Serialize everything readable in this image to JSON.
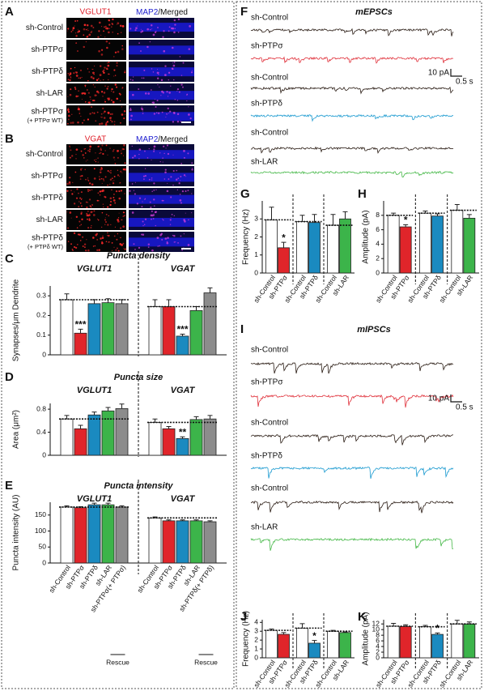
{
  "panels": [
    {
      "label": "A",
      "headers": [
        "VGLUT1",
        "MAP2",
        "/Merged"
      ],
      "rows": [
        "sh-Control",
        "sh-PTPσ",
        "sh-PTPδ",
        "sh-LAR",
        "sh-PTPσ"
      ],
      "rescue_note": "(+ PTPσ WT)"
    },
    {
      "label": "B",
      "headers": [
        "VGAT",
        "MAP2",
        "/Merged"
      ],
      "rows": [
        "sh-Control",
        "sh-PTPσ",
        "sh-PTPδ",
        "sh-LAR",
        "sh-PTPδ"
      ],
      "rescue_note": "(+ PTPδ WT)"
    }
  ],
  "traces": [
    {
      "label": "F",
      "title": "mEPSCs",
      "scale_y": "10 pA",
      "scale_x": "0.5 s",
      "rows": [
        {
          "name": "sh-Control",
          "color": "#2a1c14"
        },
        {
          "name": "sh-PTPσ",
          "color": "#e0303a"
        },
        {
          "name": "sh-Control",
          "color": "#2a1c14"
        },
        {
          "name": "sh-PTPδ",
          "color": "#1b9ad0"
        },
        {
          "name": "sh-Control",
          "color": "#2a1c14"
        },
        {
          "name": "sh-LAR",
          "color": "#45b847"
        }
      ]
    },
    {
      "label": "I",
      "title": "mIPSCs",
      "scale_y": "10 pA",
      "scale_x": "0.5 s",
      "rows": [
        {
          "name": "sh-Control",
          "color": "#2a1c14"
        },
        {
          "name": "sh-PTPσ",
          "color": "#e0303a"
        },
        {
          "name": "sh-Control",
          "color": "#2a1c14"
        },
        {
          "name": "sh-PTPδ",
          "color": "#1b9ad0"
        },
        {
          "name": "sh-Control",
          "color": "#2a1c14"
        },
        {
          "name": "sh-LAR",
          "color": "#45b847"
        }
      ]
    }
  ],
  "chart_data": [
    {
      "type": "bar",
      "label": "C",
      "title": "Puncta density",
      "ylabel": "Synapses/μm Dendrite",
      "ylim": [
        0,
        0.35
      ],
      "yticks": [
        0,
        0.1,
        0.2,
        0.3
      ],
      "groups": [
        {
          "name": "VGLUT1",
          "values": [
            0.28,
            0.11,
            0.26,
            0.265,
            0.26
          ],
          "errors": [
            0.03,
            0.02,
            0.02,
            0.02,
            0.02
          ],
          "colors": [
            "#ffffff",
            "#e0252a",
            "#1a8ac0",
            "#3cb44a",
            "#8c8c8c"
          ],
          "significance": [
            null,
            "***",
            null,
            null,
            null
          ]
        },
        {
          "name": "VGAT",
          "values": [
            0.245,
            0.245,
            0.095,
            0.225,
            0.315
          ],
          "errors": [
            0.035,
            0.035,
            0.01,
            0.02,
            0.025
          ],
          "colors": [
            "#ffffff",
            "#e0252a",
            "#1a8ac0",
            "#3cb44a",
            "#8c8c8c"
          ],
          "significance": [
            null,
            null,
            "***",
            null,
            null
          ]
        }
      ]
    },
    {
      "type": "bar",
      "label": "D",
      "title": "Puncta size",
      "ylabel": "Area (μm²)",
      "ylim": [
        0,
        0.9
      ],
      "yticks": [
        0,
        0.4,
        0.8
      ],
      "groups": [
        {
          "name": "VGLUT1",
          "values": [
            0.63,
            0.46,
            0.7,
            0.77,
            0.81
          ],
          "errors": [
            0.06,
            0.06,
            0.05,
            0.06,
            0.08
          ],
          "colors": [
            "#ffffff",
            "#e0252a",
            "#1a8ac0",
            "#3cb44a",
            "#8c8c8c"
          ],
          "significance": [
            null,
            null,
            null,
            null,
            null
          ]
        },
        {
          "name": "VGAT",
          "values": [
            0.57,
            0.46,
            0.29,
            0.62,
            0.63
          ],
          "errors": [
            0.06,
            0.04,
            0.03,
            0.05,
            0.06
          ],
          "colors": [
            "#ffffff",
            "#e0252a",
            "#1a8ac0",
            "#3cb44a",
            "#8c8c8c"
          ],
          "significance": [
            null,
            null,
            "**",
            null,
            null
          ]
        }
      ]
    },
    {
      "type": "bar",
      "label": "E",
      "title": "Puncta intensity",
      "ylabel": "Puncta intensity (AU)",
      "ylim": [
        0,
        190
      ],
      "yticks": [
        0,
        50,
        100,
        150
      ],
      "groups": [
        {
          "name": "VGLUT1",
          "categories": [
            "sh-Control",
            "sh-PTPσ",
            "sh-PTPδ",
            "sh-LAR",
            "sh-PTPσ(+ PTPσ)"
          ],
          "values": [
            175,
            173,
            182,
            182,
            175
          ],
          "errors": [
            4,
            3,
            5,
            5,
            4
          ],
          "colors": [
            "#ffffff",
            "#e0252a",
            "#1a8ac0",
            "#3cb44a",
            "#8c8c8c"
          ],
          "significance": [
            null,
            null,
            null,
            null,
            null
          ],
          "rescue": "Rescue"
        },
        {
          "name": "VGAT",
          "categories": [
            "sh-Control",
            "sh-PTPσ",
            "sh-PTPδ",
            "sh-LAR",
            "sh-PTPδ(+ PTPδ)"
          ],
          "values": [
            141,
            132,
            132,
            132,
            129
          ],
          "errors": [
            3,
            3,
            3,
            3,
            3
          ],
          "colors": [
            "#ffffff",
            "#e0252a",
            "#1a8ac0",
            "#3cb44a",
            "#8c8c8c"
          ],
          "significance": [
            null,
            null,
            null,
            null,
            null
          ],
          "rescue": "Rescue"
        }
      ]
    },
    {
      "type": "bar",
      "label": "G",
      "ylabel": "Frequency (Hz)",
      "ylim": [
        0,
        4
      ],
      "yticks": [
        0,
        1,
        2,
        3
      ],
      "groups": [
        {
          "categories": [
            "sh-Control",
            "sh-PTPσ"
          ],
          "values": [
            2.95,
            1.4
          ],
          "errors": [
            0.7,
            0.3
          ],
          "colors": [
            "#ffffff",
            "#e0252a"
          ],
          "significance": [
            null,
            "*"
          ]
        },
        {
          "categories": [
            "sh-Control",
            "sh-PTPδ"
          ],
          "values": [
            2.85,
            2.8
          ],
          "errors": [
            0.35,
            0.45
          ],
          "colors": [
            "#ffffff",
            "#1a8ac0"
          ],
          "significance": [
            null,
            null
          ]
        },
        {
          "categories": [
            "sh-Control",
            "sh-LAR"
          ],
          "values": [
            2.65,
            3.0
          ],
          "errors": [
            0.6,
            0.4
          ],
          "colors": [
            "#ffffff",
            "#3cb44a"
          ],
          "significance": [
            null,
            null
          ]
        }
      ]
    },
    {
      "type": "bar",
      "label": "H",
      "ylabel": "Amplitude (pA)",
      "ylim": [
        0,
        10
      ],
      "yticks": [
        0,
        2,
        4,
        6,
        8
      ],
      "groups": [
        {
          "categories": [
            "sh-Control",
            "sh-PTPσ"
          ],
          "values": [
            8.0,
            6.4
          ],
          "errors": [
            0.3,
            0.3
          ],
          "colors": [
            "#ffffff",
            "#e0252a"
          ],
          "significance": [
            null,
            "*"
          ]
        },
        {
          "categories": [
            "sh-Control",
            "sh-PTPδ"
          ],
          "values": [
            8.3,
            7.9
          ],
          "errors": [
            0.3,
            0.3
          ],
          "colors": [
            "#ffffff",
            "#1a8ac0"
          ],
          "significance": [
            null,
            null
          ]
        },
        {
          "categories": [
            "sh-Control",
            "sh-LAR"
          ],
          "values": [
            8.7,
            7.6
          ],
          "errors": [
            0.8,
            0.5
          ],
          "colors": [
            "#ffffff",
            "#3cb44a"
          ],
          "significance": [
            null,
            null
          ]
        }
      ]
    },
    {
      "type": "bar",
      "label": "J",
      "ylabel": "Frequency (Hz)",
      "ylim": [
        0,
        4.3
      ],
      "yticks": [
        0,
        1,
        2,
        3,
        4
      ],
      "groups": [
        {
          "categories": [
            "sh-Control",
            "sh-PTPσ"
          ],
          "values": [
            3.1,
            2.65
          ],
          "errors": [
            0.15,
            0.2
          ],
          "colors": [
            "#ffffff",
            "#e0252a"
          ],
          "significance": [
            null,
            null
          ]
        },
        {
          "categories": [
            "sh-Control",
            "sh-PTPδ"
          ],
          "values": [
            3.35,
            1.65
          ],
          "errors": [
            0.5,
            0.3
          ],
          "colors": [
            "#ffffff",
            "#1a8ac0"
          ],
          "significance": [
            null,
            "*"
          ]
        },
        {
          "categories": [
            "sh-Control",
            "sh-LAR"
          ],
          "values": [
            3.0,
            2.85
          ],
          "errors": [
            0.1,
            0.08
          ],
          "colors": [
            "#ffffff",
            "#3cb44a"
          ],
          "significance": [
            null,
            null
          ]
        }
      ]
    },
    {
      "type": "bar",
      "label": "K",
      "ylabel": "Amplitude (pA)",
      "ylim": [
        0,
        13.5
      ],
      "yticks": [
        0,
        2,
        4,
        6,
        8,
        10,
        12
      ],
      "groups": [
        {
          "categories": [
            "sh-Control",
            "sh-PTPσ"
          ],
          "values": [
            11.2,
            11.1
          ],
          "errors": [
            1.0,
            0.6
          ],
          "colors": [
            "#ffffff",
            "#e0252a"
          ],
          "significance": [
            null,
            null
          ]
        },
        {
          "categories": [
            "sh-Control",
            "sh-PTPδ"
          ],
          "values": [
            11.0,
            8.3
          ],
          "errors": [
            0.5,
            0.5
          ],
          "colors": [
            "#ffffff",
            "#1a8ac0"
          ],
          "significance": [
            null,
            "*"
          ]
        },
        {
          "categories": [
            "sh-Control",
            "sh-LAR"
          ],
          "values": [
            12.0,
            12.0
          ],
          "errors": [
            1.3,
            0.7
          ],
          "colors": [
            "#ffffff",
            "#3cb44a"
          ],
          "significance": [
            null,
            null
          ]
        }
      ]
    }
  ]
}
